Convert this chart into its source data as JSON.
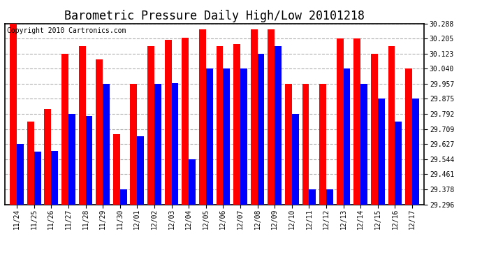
{
  "title": "Barometric Pressure Daily High/Low 20101218",
  "copyright": "Copyright 2010 Cartronics.com",
  "dates": [
    "11/24",
    "11/25",
    "11/26",
    "11/27",
    "11/28",
    "11/29",
    "11/30",
    "12/01",
    "12/02",
    "12/03",
    "12/04",
    "12/05",
    "12/06",
    "12/07",
    "12/08",
    "12/09",
    "12/10",
    "12/11",
    "12/12",
    "12/13",
    "12/14",
    "12/15",
    "12/16",
    "12/17"
  ],
  "highs": [
    30.288,
    29.75,
    29.82,
    30.123,
    30.165,
    30.09,
    29.68,
    29.957,
    30.165,
    30.2,
    30.21,
    30.255,
    30.165,
    30.175,
    30.255,
    30.255,
    29.957,
    29.957,
    29.957,
    30.205,
    30.205,
    30.123,
    30.165,
    30.04
  ],
  "lows": [
    29.627,
    29.585,
    29.591,
    29.792,
    29.78,
    29.957,
    29.378,
    29.668,
    29.957,
    29.96,
    29.544,
    30.04,
    30.04,
    30.04,
    30.123,
    30.165,
    29.792,
    29.378,
    29.378,
    30.04,
    29.957,
    29.875,
    29.75,
    29.875
  ],
  "ymin": 29.296,
  "ymax": 30.288,
  "yticks": [
    29.296,
    29.378,
    29.461,
    29.544,
    29.627,
    29.709,
    29.792,
    29.875,
    29.957,
    30.04,
    30.123,
    30.205,
    30.288
  ],
  "high_color": "#ff0000",
  "low_color": "#0000ff",
  "bg_color": "#ffffff",
  "grid_color": "#b0b0b0",
  "title_fontsize": 12,
  "copyright_fontsize": 7,
  "bar_width": 0.4
}
